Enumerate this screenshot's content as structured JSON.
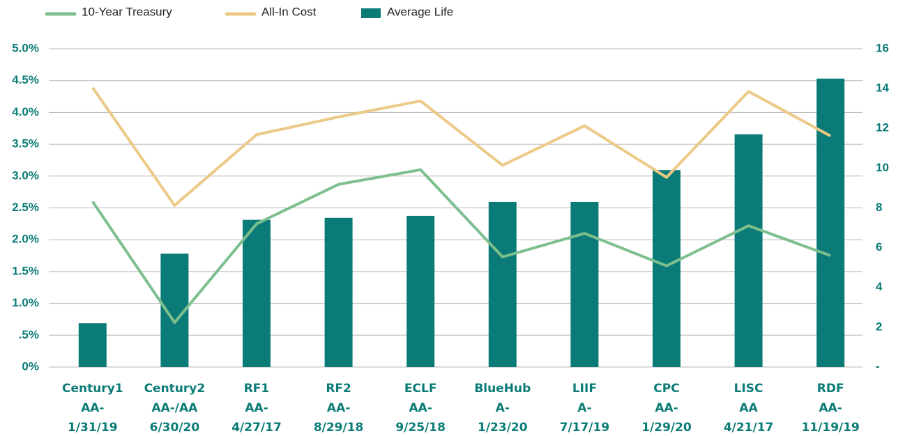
{
  "chart_data": {
    "type": "bar",
    "categories": [
      [
        "Century1",
        "AA-",
        "1/31/19"
      ],
      [
        "Century2",
        "AA-/AA",
        "6/30/20"
      ],
      [
        "RF1",
        "AA-",
        "4/27/17"
      ],
      [
        "RF2",
        "AA-",
        "8/29/18"
      ],
      [
        "ECLF",
        "AA-",
        "9/25/18"
      ],
      [
        "BlueHub",
        "A-",
        "1/23/20"
      ],
      [
        "LIIF",
        "A-",
        "7/17/19"
      ],
      [
        "CPC",
        "AA-",
        "1/29/20"
      ],
      [
        "LISC",
        "AA",
        "4/21/17"
      ],
      [
        "RDF",
        "AA-",
        "11/19/19"
      ]
    ],
    "series": [
      {
        "name": "10-Year Treasury",
        "type": "line",
        "color": "#7dbf8e",
        "values": [
          2.6,
          0.7,
          2.25,
          2.87,
          3.1,
          1.73,
          2.1,
          1.59,
          2.22,
          1.75
        ]
      },
      {
        "name": "All-In Cost",
        "type": "line",
        "color": "#ecc987",
        "values": [
          4.39,
          2.54,
          3.65,
          3.93,
          4.18,
          3.17,
          3.79,
          2.98,
          4.33,
          3.63
        ]
      },
      {
        "name": "Average Life",
        "type": "bar",
        "axis": "y2",
        "color": "#0a7b76",
        "values": [
          2.2,
          5.7,
          7.4,
          7.5,
          7.6,
          8.3,
          8.3,
          9.9,
          11.7,
          14.5
        ]
      }
    ],
    "ylim": [
      0,
      5
    ],
    "yticks": [
      {
        "value": 0,
        "label": "0%"
      },
      {
        "value": 0.5,
        "label": ".5%"
      },
      {
        "value": 1,
        "label": "1.0%"
      },
      {
        "value": 1.5,
        "label": "1.5%"
      },
      {
        "value": 2,
        "label": "2.0%"
      },
      {
        "value": 2.5,
        "label": "2.5%"
      },
      {
        "value": 3,
        "label": "3.0%"
      },
      {
        "value": 3.5,
        "label": "3.5%"
      },
      {
        "value": 4,
        "label": "4.0%"
      },
      {
        "value": 4.5,
        "label": "4.5%"
      },
      {
        "value": 5,
        "label": "5.0%"
      }
    ],
    "y2lim": [
      0,
      16
    ],
    "y2ticks": [
      {
        "value": 0,
        "label": "-"
      },
      2,
      4,
      6,
      8,
      10,
      12,
      14,
      16
    ],
    "grid": true
  }
}
